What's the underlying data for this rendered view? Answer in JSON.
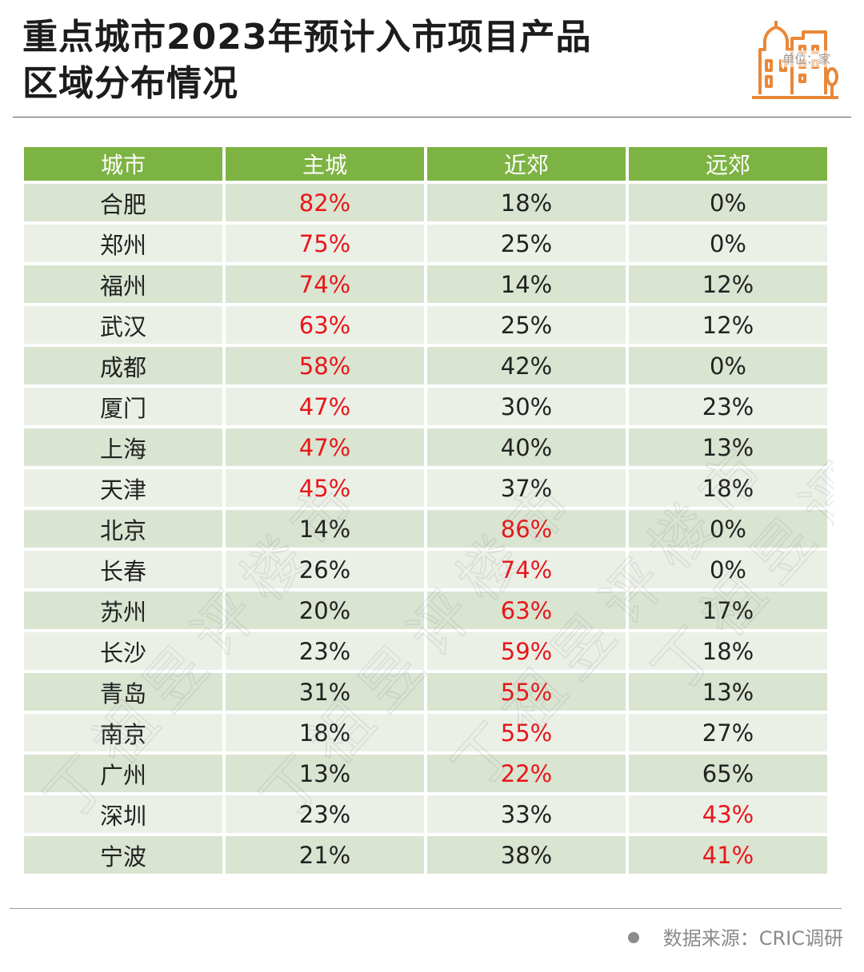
{
  "title_lines": [
    "重点城市2023年预计入市项目产品",
    "区域分布情况"
  ],
  "unit": "单位：家",
  "source": "数据来源：CRIC调研",
  "watermark_text": "丁祖昱评楼市",
  "colors": {
    "header": "#7db343",
    "row_dark": "#d9e4d1",
    "row_light": "#ebf0e7",
    "highlight": "#e8161a",
    "logo": "#e8883a"
  },
  "chart_data": {
    "type": "table",
    "title": "重点城市2023年预计入市项目产品区域分布情况",
    "columns": [
      "城市",
      "主城",
      "近郊",
      "远郊"
    ],
    "rows": [
      {
        "city": "合肥",
        "values": [
          "82%",
          "18%",
          "0%"
        ],
        "highlight": 0
      },
      {
        "city": "郑州",
        "values": [
          "75%",
          "25%",
          "0%"
        ],
        "highlight": 0
      },
      {
        "city": "福州",
        "values": [
          "74%",
          "14%",
          "12%"
        ],
        "highlight": 0
      },
      {
        "city": "武汉",
        "values": [
          "63%",
          "25%",
          "12%"
        ],
        "highlight": 0
      },
      {
        "city": "成都",
        "values": [
          "58%",
          "42%",
          "0%"
        ],
        "highlight": 0
      },
      {
        "city": "厦门",
        "values": [
          "47%",
          "30%",
          "23%"
        ],
        "highlight": 0
      },
      {
        "city": "上海",
        "values": [
          "47%",
          "40%",
          "13%"
        ],
        "highlight": 0
      },
      {
        "city": "天津",
        "values": [
          "45%",
          "37%",
          "18%"
        ],
        "highlight": 0
      },
      {
        "city": "北京",
        "values": [
          "14%",
          "86%",
          "0%"
        ],
        "highlight": 1
      },
      {
        "city": "长春",
        "values": [
          "26%",
          "74%",
          "0%"
        ],
        "highlight": 1
      },
      {
        "city": "苏州",
        "values": [
          "20%",
          "63%",
          "17%"
        ],
        "highlight": 1
      },
      {
        "city": "长沙",
        "values": [
          "23%",
          "59%",
          "18%"
        ],
        "highlight": 1
      },
      {
        "city": "青岛",
        "values": [
          "31%",
          "55%",
          "13%"
        ],
        "highlight": 1
      },
      {
        "city": "南京",
        "values": [
          "18%",
          "55%",
          "27%"
        ],
        "highlight": 1
      },
      {
        "city": "广州",
        "values": [
          "13%",
          "22%",
          "65%"
        ],
        "highlight": 1
      },
      {
        "city": "深圳",
        "values": [
          "23%",
          "33%",
          "43%"
        ],
        "highlight": 2
      },
      {
        "city": "宁波",
        "values": [
          "21%",
          "38%",
          "41%"
        ],
        "highlight": 2
      }
    ]
  }
}
